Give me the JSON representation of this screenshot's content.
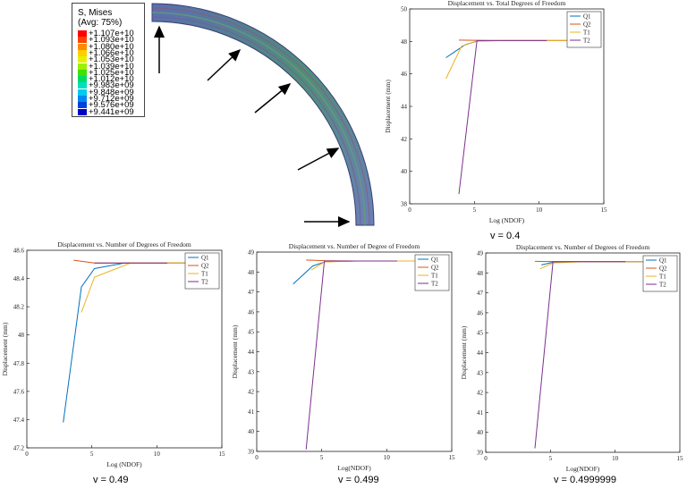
{
  "contour_legend": {
    "title": "S, Mises",
    "subtitle": "(Avg: 75%)",
    "entries": [
      {
        "label": "+1.107e+10",
        "color": "#ff0000"
      },
      {
        "label": "+1.093e+10",
        "color": "#ff4400"
      },
      {
        "label": "+1.080e+10",
        "color": "#ff8c00"
      },
      {
        "label": "+1.066e+10",
        "color": "#ffd000"
      },
      {
        "label": "+1.053e+10",
        "color": "#e6f000"
      },
      {
        "label": "+1.039e+10",
        "color": "#9cf000"
      },
      {
        "label": "+1.025e+10",
        "color": "#40e000"
      },
      {
        "label": "+1.012e+10",
        "color": "#00dc60"
      },
      {
        "label": "+9.983e+09",
        "color": "#00e0c0"
      },
      {
        "label": "+9.848e+09",
        "color": "#00c8f0"
      },
      {
        "label": "+9.712e+09",
        "color": "#0088f0"
      },
      {
        "label": "+9.576e+09",
        "color": "#0040e0"
      },
      {
        "label": "+9.441e+09",
        "color": "#0000c8"
      }
    ]
  },
  "chart_data": [
    {
      "type": "line",
      "title": "Displacement vs. Total Degrees of Freedom",
      "xlabel": "Log (NDOF)",
      "ylabel": "Displacement (mm)",
      "caption": "v = 0.4",
      "xlim": [
        0,
        15
      ],
      "ylim": [
        38,
        50
      ],
      "xticks": [
        0,
        5,
        10,
        15
      ],
      "yticks": [
        38,
        40,
        42,
        44,
        46,
        48,
        50
      ],
      "legend_position": "top-right",
      "series": [
        {
          "name": "Q1",
          "color": "#0072bd",
          "x": [
            2.8,
            4.3,
            5.3,
            7.5,
            10.6,
            12.7
          ],
          "y": [
            47.0,
            47.8,
            48.04,
            48.05,
            48.05,
            48.05
          ]
        },
        {
          "name": "Q2",
          "color": "#d95319",
          "x": [
            3.8,
            5.1,
            7.3,
            10.5,
            12.7
          ],
          "y": [
            48.08,
            48.07,
            48.05,
            48.05,
            48.05
          ]
        },
        {
          "name": "T1",
          "color": "#edb120",
          "x": [
            2.8,
            4.0,
            5.1,
            7.3,
            10.6,
            12.8
          ],
          "y": [
            45.7,
            47.7,
            48.0,
            48.05,
            48.05,
            48.05
          ]
        },
        {
          "name": "T2",
          "color": "#7e2f8e",
          "x": [
            3.8,
            5.2,
            7.4,
            10.6
          ],
          "y": [
            38.6,
            48.05,
            48.05,
            48.05
          ]
        }
      ]
    },
    {
      "type": "line",
      "title": "Displacement vs. Number of Degrees of Freedom",
      "xlabel": "Log (NDOF)",
      "ylabel": "Displacement (mm)",
      "caption": "v = 0.49",
      "xlim": [
        0,
        15
      ],
      "ylim": [
        47.2,
        48.6
      ],
      "xticks": [
        0,
        5,
        10,
        15
      ],
      "yticks": [
        47.2,
        47.4,
        47.6,
        47.8,
        48,
        48.2,
        48.4,
        48.6
      ],
      "legend_position": "top-right",
      "series": [
        {
          "name": "Q1",
          "color": "#0072bd",
          "x": [
            2.8,
            4.2,
            5.2,
            7.5,
            10.8,
            12.8
          ],
          "y": [
            47.38,
            48.34,
            48.47,
            48.51,
            48.51,
            48.51
          ]
        },
        {
          "name": "Q2",
          "color": "#d95319",
          "x": [
            3.6,
            5.2,
            7.5,
            10.8,
            12.8
          ],
          "y": [
            48.53,
            48.51,
            48.51,
            48.51,
            48.51
          ]
        },
        {
          "name": "T1",
          "color": "#edb120",
          "x": [
            4.2,
            5.2,
            8.0,
            10.8,
            12.8
          ],
          "y": [
            48.16,
            48.41,
            48.51,
            48.51,
            48.51
          ]
        },
        {
          "name": "T2",
          "color": "#7e2f8e",
          "x": [
            5.2,
            7.5,
            10.8
          ],
          "y": [
            48.51,
            48.51,
            48.51
          ]
        }
      ]
    },
    {
      "type": "line",
      "title": "Displacement vs. Number of Degree of Freedom",
      "xlabel": "Log(NDOF)",
      "ylabel": "Displacement (mm)",
      "caption": "v = 0.499",
      "xlim": [
        0,
        15
      ],
      "ylim": [
        39,
        49
      ],
      "xticks": [
        0,
        5,
        10,
        15
      ],
      "yticks": [
        39,
        40,
        41,
        42,
        43,
        44,
        45,
        46,
        47,
        48,
        49
      ],
      "legend_position": "top-right",
      "series": [
        {
          "name": "Q1",
          "color": "#0072bd",
          "x": [
            2.8,
            4.3,
            5.3,
            7.5,
            10.8,
            12.8
          ],
          "y": [
            47.4,
            48.3,
            48.52,
            48.55,
            48.55,
            48.55
          ]
        },
        {
          "name": "Q2",
          "color": "#d95319",
          "x": [
            3.8,
            5.2,
            7.5,
            10.8,
            12.8
          ],
          "y": [
            48.6,
            48.57,
            48.55,
            48.55,
            48.55
          ]
        },
        {
          "name": "T1",
          "color": "#edb120",
          "x": [
            4.2,
            5.2,
            7.8,
            10.8,
            12.8
          ],
          "y": [
            48.1,
            48.5,
            48.55,
            48.55,
            48.55
          ]
        },
        {
          "name": "T2",
          "color": "#7e2f8e",
          "x": [
            3.8,
            5.2,
            7.5,
            10.8
          ],
          "y": [
            39.1,
            48.55,
            48.55,
            48.55
          ]
        }
      ]
    },
    {
      "type": "line",
      "title": "Displacement vs. Number of Degrees of Freedom",
      "xlabel": "Log(NDOF)",
      "ylabel": "Displacement (mm)",
      "caption": "v = 0.4999999",
      "xlim": [
        0,
        15
      ],
      "ylim": [
        39,
        49
      ],
      "xticks": [
        0,
        5,
        10,
        15
      ],
      "yticks": [
        39,
        40,
        41,
        42,
        43,
        44,
        45,
        46,
        47,
        48,
        49
      ],
      "legend_position": "top-right",
      "series": [
        {
          "name": "Q1",
          "color": "#0072bd",
          "x": [
            4.3,
            5.3,
            7.5,
            10.8,
            12.8
          ],
          "y": [
            48.4,
            48.55,
            48.56,
            48.56,
            48.56
          ]
        },
        {
          "name": "Q2",
          "color": "#d95319",
          "x": [
            3.8,
            5.2,
            7.5,
            10.8,
            12.8
          ],
          "y": [
            48.58,
            48.57,
            48.56,
            48.56,
            48.56
          ]
        },
        {
          "name": "T1",
          "color": "#edb120",
          "x": [
            4.2,
            5.2,
            7.8,
            10.8,
            12.8
          ],
          "y": [
            48.2,
            48.5,
            48.56,
            48.56,
            48.56
          ]
        },
        {
          "name": "T2",
          "color": "#7e2f8e",
          "x": [
            3.8,
            5.2,
            7.5,
            10.8
          ],
          "y": [
            39.2,
            48.56,
            48.56,
            48.56
          ]
        }
      ]
    }
  ]
}
